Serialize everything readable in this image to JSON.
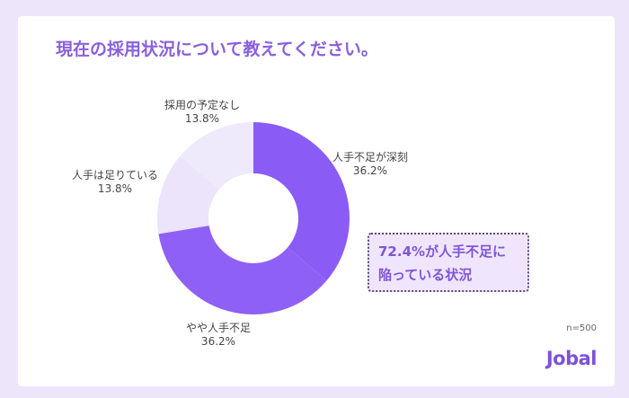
{
  "chart_data": {
    "type": "pie",
    "title": "現在の採用状況について教えてください。",
    "donut": true,
    "slices": [
      {
        "label": "人手不足が深刻",
        "value": 36.2,
        "display": "36.2%",
        "color": "#8a5cf5"
      },
      {
        "label": "やや人手不足",
        "value": 36.2,
        "display": "36.2%",
        "color": "#8f60f6"
      },
      {
        "label": "人手は足りている",
        "value": 13.8,
        "display": "13.8%",
        "color": "#ebe4fb"
      },
      {
        "label": "採用の予定なし",
        "value": 13.8,
        "display": "13.8%",
        "color": "#efe9fc"
      }
    ],
    "annotation_lines": [
      "72.4%が人手不足に",
      "陥っている状況"
    ],
    "note": "n=500"
  },
  "brand": "Jobal"
}
